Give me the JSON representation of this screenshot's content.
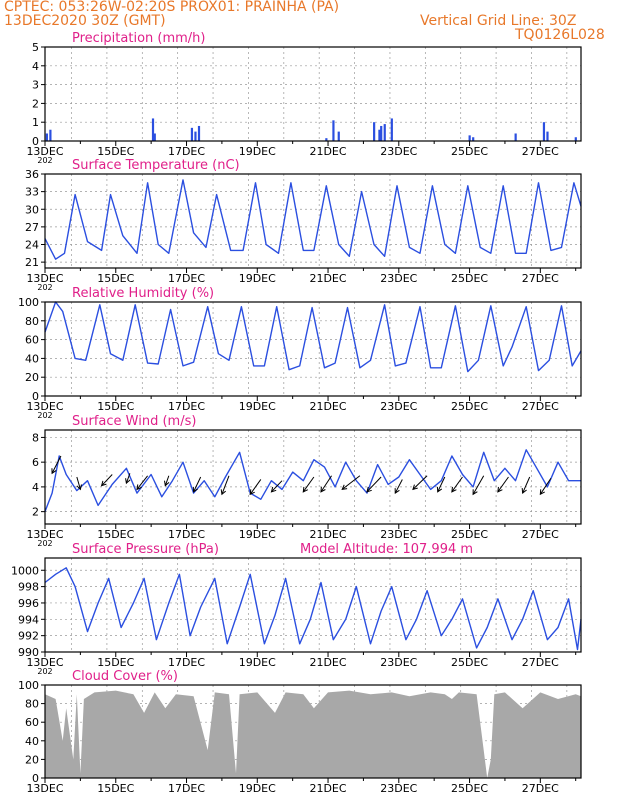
{
  "header": {
    "line1": "CPTEC:  053:26W-02:20S  PROX01: PRAINHA (PA)",
    "line2_left": "13DEC2020 30Z (GMT)",
    "line2_right": "Vertical Grid Line: 30Z",
    "line3_right": "TQ0126L028"
  },
  "colors": {
    "header": "#e8782a",
    "title": "#e0208a",
    "line": "#2b4fe0",
    "wind": "#000000",
    "cloud": "#a8a8a8",
    "grid": "#9a9a9a"
  },
  "x_tick_labels": [
    "13DEC",
    "15DEC",
    "17DEC",
    "19DEC",
    "21DEC",
    "23DEC",
    "25DEC",
    "27DEC"
  ],
  "year_fragment": "202",
  "chart_data": [
    {
      "id": "precip",
      "type": "bar",
      "title": "Precipitation (mm/h)",
      "ylim": [
        0,
        5
      ],
      "yticks": [
        0,
        1,
        2,
        3,
        4,
        5
      ],
      "bars": [
        [
          0.05,
          0.4
        ],
        [
          0.15,
          0.6
        ],
        [
          3.05,
          1.2
        ],
        [
          3.1,
          0.4
        ],
        [
          4.15,
          0.7
        ],
        [
          4.25,
          0.5
        ],
        [
          4.35,
          0.8
        ],
        [
          7.95,
          0.15
        ],
        [
          8.15,
          1.1
        ],
        [
          8.3,
          0.5
        ],
        [
          9.3,
          1.0
        ],
        [
          9.45,
          0.6
        ],
        [
          9.5,
          0.8
        ],
        [
          9.6,
          0.9
        ],
        [
          9.8,
          1.2
        ],
        [
          12.0,
          0.3
        ],
        [
          12.1,
          0.2
        ],
        [
          13.3,
          0.4
        ],
        [
          14.1,
          1.0
        ],
        [
          14.2,
          0.5
        ],
        [
          15.0,
          0.2
        ]
      ]
    },
    {
      "id": "temp",
      "type": "line",
      "title": "Surface Temperature (nC)",
      "ylim": [
        20,
        36
      ],
      "yticks": [
        21,
        24,
        27,
        30,
        33,
        36
      ],
      "points": [
        [
          0,
          25
        ],
        [
          0.3,
          21.5
        ],
        [
          0.55,
          22.5
        ],
        [
          0.85,
          32.5
        ],
        [
          1.2,
          24.5
        ],
        [
          1.6,
          23
        ],
        [
          1.85,
          32.5
        ],
        [
          2.2,
          25.5
        ],
        [
          2.6,
          22.5
        ],
        [
          2.9,
          34.5
        ],
        [
          3.2,
          24
        ],
        [
          3.5,
          22.5
        ],
        [
          3.9,
          35
        ],
        [
          4.2,
          26
        ],
        [
          4.55,
          23.5
        ],
        [
          4.85,
          32.5
        ],
        [
          5.25,
          23
        ],
        [
          5.6,
          23
        ],
        [
          5.95,
          34.5
        ],
        [
          6.25,
          24
        ],
        [
          6.6,
          22.5
        ],
        [
          6.95,
          34.5
        ],
        [
          7.3,
          23
        ],
        [
          7.6,
          23
        ],
        [
          7.95,
          34
        ],
        [
          8.3,
          24
        ],
        [
          8.6,
          22
        ],
        [
          8.95,
          33
        ],
        [
          9.3,
          24
        ],
        [
          9.6,
          22
        ],
        [
          9.95,
          34
        ],
        [
          10.3,
          23.5
        ],
        [
          10.6,
          22.5
        ],
        [
          10.95,
          34
        ],
        [
          11.3,
          24
        ],
        [
          11.6,
          22.5
        ],
        [
          11.95,
          34
        ],
        [
          12.3,
          23.5
        ],
        [
          12.6,
          22.5
        ],
        [
          12.95,
          34
        ],
        [
          13.3,
          22.5
        ],
        [
          13.6,
          22.5
        ],
        [
          13.95,
          34.5
        ],
        [
          14.3,
          23
        ],
        [
          14.6,
          23.5
        ],
        [
          14.95,
          34.5
        ],
        [
          15.15,
          30.5
        ]
      ]
    },
    {
      "id": "rh",
      "type": "line",
      "title": "Relative Humidity (%)",
      "ylim": [
        0,
        100
      ],
      "yticks": [
        0,
        20,
        40,
        60,
        80,
        100
      ],
      "points": [
        [
          0,
          68
        ],
        [
          0.3,
          100
        ],
        [
          0.5,
          90
        ],
        [
          0.85,
          40
        ],
        [
          1.15,
          38
        ],
        [
          1.55,
          97
        ],
        [
          1.85,
          45
        ],
        [
          2.2,
          38
        ],
        [
          2.55,
          97
        ],
        [
          2.9,
          35
        ],
        [
          3.2,
          34
        ],
        [
          3.55,
          92
        ],
        [
          3.9,
          32
        ],
        [
          4.2,
          36
        ],
        [
          4.6,
          95
        ],
        [
          4.9,
          45
        ],
        [
          5.2,
          38
        ],
        [
          5.55,
          95
        ],
        [
          5.9,
          32
        ],
        [
          6.2,
          32
        ],
        [
          6.55,
          95
        ],
        [
          6.9,
          28
        ],
        [
          7.2,
          32
        ],
        [
          7.55,
          94
        ],
        [
          7.9,
          30
        ],
        [
          8.2,
          35
        ],
        [
          8.55,
          94
        ],
        [
          8.9,
          30
        ],
        [
          9.2,
          38
        ],
        [
          9.6,
          97
        ],
        [
          9.9,
          32
        ],
        [
          10.2,
          35
        ],
        [
          10.6,
          95
        ],
        [
          10.9,
          30
        ],
        [
          11.2,
          30
        ],
        [
          11.6,
          96
        ],
        [
          11.95,
          26
        ],
        [
          12.25,
          38
        ],
        [
          12.6,
          96
        ],
        [
          12.95,
          32
        ],
        [
          13.2,
          52
        ],
        [
          13.6,
          95
        ],
        [
          13.95,
          27
        ],
        [
          14.25,
          38
        ],
        [
          14.6,
          96
        ],
        [
          14.9,
          32
        ],
        [
          15.15,
          48
        ]
      ]
    },
    {
      "id": "wind",
      "type": "line",
      "title": "Surface Wind (m/s)",
      "ylim": [
        1,
        8.6
      ],
      "yticks": [
        2,
        4,
        6,
        8
      ],
      "points": [
        [
          0,
          2
        ],
        [
          0.2,
          3.5
        ],
        [
          0.4,
          6.5
        ],
        [
          0.6,
          5
        ],
        [
          0.9,
          3.7
        ],
        [
          1.2,
          4.5
        ],
        [
          1.5,
          2.5
        ],
        [
          1.9,
          4.2
        ],
        [
          2.3,
          5.5
        ],
        [
          2.6,
          3.5
        ],
        [
          3,
          5
        ],
        [
          3.3,
          3.2
        ],
        [
          3.6,
          4.5
        ],
        [
          3.9,
          6
        ],
        [
          4.2,
          3.5
        ],
        [
          4.5,
          4.5
        ],
        [
          4.8,
          3.2
        ],
        [
          5.1,
          4.8
        ],
        [
          5.5,
          6.8
        ],
        [
          5.8,
          3.5
        ],
        [
          6.1,
          3
        ],
        [
          6.4,
          4.5
        ],
        [
          6.7,
          3.8
        ],
        [
          7,
          5.2
        ],
        [
          7.3,
          4.5
        ],
        [
          7.6,
          6.2
        ],
        [
          7.9,
          5.6
        ],
        [
          8.2,
          4
        ],
        [
          8.5,
          6
        ],
        [
          8.8,
          4.5
        ],
        [
          9.1,
          3.5
        ],
        [
          9.4,
          5.8
        ],
        [
          9.7,
          4.2
        ],
        [
          10,
          4.8
        ],
        [
          10.3,
          6.2
        ],
        [
          10.6,
          5
        ],
        [
          10.9,
          3.8
        ],
        [
          11.2,
          4.5
        ],
        [
          11.5,
          6.5
        ],
        [
          11.8,
          5
        ],
        [
          12.1,
          4
        ],
        [
          12.4,
          6.8
        ],
        [
          12.7,
          4.5
        ],
        [
          13,
          5.5
        ],
        [
          13.3,
          4.5
        ],
        [
          13.6,
          7
        ],
        [
          13.9,
          5.5
        ],
        [
          14.2,
          4
        ],
        [
          14.5,
          6
        ],
        [
          14.8,
          4.5
        ],
        [
          15.15,
          4.5
        ]
      ],
      "arrows": [
        [
          0.45,
          6.5,
          0.2,
          5.1
        ],
        [
          0.9,
          4.8,
          1.0,
          3.8
        ],
        [
          1.9,
          5,
          1.6,
          4.1
        ],
        [
          2.4,
          5.1,
          2.3,
          4.3
        ],
        [
          2.9,
          4.9,
          2.6,
          3.8
        ],
        [
          3.5,
          4.9,
          3.4,
          4.1
        ],
        [
          4.4,
          4.8,
          4.2,
          3.6
        ],
        [
          5.2,
          4.9,
          5.0,
          3.4
        ],
        [
          6.1,
          4.6,
          5.8,
          3.4
        ],
        [
          6.7,
          4.5,
          6.4,
          3.6
        ],
        [
          7.6,
          4.8,
          7.3,
          3.6
        ],
        [
          8.1,
          4.9,
          7.8,
          3.6
        ],
        [
          8.9,
          4.9,
          8.4,
          3.8
        ],
        [
          9.5,
          4.8,
          9.1,
          3.6
        ],
        [
          10.1,
          4.6,
          9.9,
          3.5
        ],
        [
          10.8,
          4.9,
          10.4,
          3.8
        ],
        [
          11.3,
          4.8,
          11.1,
          3.6
        ],
        [
          11.8,
          4.8,
          11.5,
          3.6
        ],
        [
          12.4,
          4.9,
          12.1,
          3.4
        ],
        [
          13.1,
          4.8,
          12.8,
          3.6
        ],
        [
          13.7,
          4.8,
          13.5,
          3.5
        ],
        [
          14.3,
          4.7,
          14.0,
          3.4
        ]
      ]
    },
    {
      "id": "press",
      "type": "line",
      "title": "Surface Pressure (hPa)",
      "subtitle": "Model Altitude: 107.994 m",
      "ylim": [
        990,
        1001.5
      ],
      "yticks": [
        990,
        992,
        994,
        996,
        998,
        1000
      ],
      "points": [
        [
          0,
          998.5
        ],
        [
          0.3,
          999.5
        ],
        [
          0.6,
          1000.3
        ],
        [
          0.85,
          998
        ],
        [
          1.2,
          992.5
        ],
        [
          1.5,
          996
        ],
        [
          1.8,
          999
        ],
        [
          2.15,
          993
        ],
        [
          2.5,
          996
        ],
        [
          2.8,
          999
        ],
        [
          3.15,
          991.5
        ],
        [
          3.5,
          996
        ],
        [
          3.8,
          999.5
        ],
        [
          4.1,
          992
        ],
        [
          4.4,
          995.5
        ],
        [
          4.8,
          999
        ],
        [
          5.15,
          991
        ],
        [
          5.5,
          995.5
        ],
        [
          5.8,
          999.5
        ],
        [
          6.2,
          991
        ],
        [
          6.5,
          994.5
        ],
        [
          6.8,
          999
        ],
        [
          7.2,
          991
        ],
        [
          7.5,
          994
        ],
        [
          7.8,
          998.5
        ],
        [
          8.15,
          991.5
        ],
        [
          8.5,
          994
        ],
        [
          8.8,
          998
        ],
        [
          9.2,
          991
        ],
        [
          9.5,
          995
        ],
        [
          9.8,
          998
        ],
        [
          10.2,
          991.5
        ],
        [
          10.5,
          994
        ],
        [
          10.8,
          997.5
        ],
        [
          11.2,
          992
        ],
        [
          11.5,
          994
        ],
        [
          11.8,
          996.5
        ],
        [
          12.2,
          990.5
        ],
        [
          12.5,
          993
        ],
        [
          12.8,
          996.5
        ],
        [
          13.2,
          991.5
        ],
        [
          13.5,
          994
        ],
        [
          13.8,
          997.5
        ],
        [
          14.2,
          991.5
        ],
        [
          14.5,
          993
        ],
        [
          14.8,
          996.5
        ],
        [
          15.05,
          990.3
        ],
        [
          15.15,
          994
        ]
      ]
    },
    {
      "id": "cloud",
      "type": "area",
      "title": "Cloud Cover (%)",
      "ylim": [
        0,
        100
      ],
      "yticks": [
        0,
        20,
        40,
        60,
        80,
        100
      ],
      "points": [
        [
          0,
          90
        ],
        [
          0.3,
          85
        ],
        [
          0.5,
          40
        ],
        [
          0.6,
          75
        ],
        [
          0.8,
          20
        ],
        [
          0.9,
          90
        ],
        [
          1.0,
          5
        ],
        [
          1.1,
          85
        ],
        [
          1.4,
          92
        ],
        [
          2.0,
          94
        ],
        [
          2.5,
          90
        ],
        [
          2.8,
          70
        ],
        [
          3.1,
          92
        ],
        [
          3.4,
          75
        ],
        [
          3.7,
          90
        ],
        [
          4.2,
          88
        ],
        [
          4.6,
          30
        ],
        [
          4.8,
          92
        ],
        [
          5.2,
          90
        ],
        [
          5.4,
          5
        ],
        [
          5.5,
          90
        ],
        [
          6.0,
          92
        ],
        [
          6.5,
          70
        ],
        [
          6.8,
          92
        ],
        [
          7.3,
          90
        ],
        [
          7.6,
          75
        ],
        [
          8.0,
          92
        ],
        [
          8.6,
          94
        ],
        [
          9.2,
          90
        ],
        [
          9.8,
          92
        ],
        [
          10.3,
          88
        ],
        [
          10.9,
          92
        ],
        [
          11.3,
          90
        ],
        [
          11.5,
          85
        ],
        [
          11.7,
          92
        ],
        [
          12.2,
          90
        ],
        [
          12.4,
          30
        ],
        [
          12.5,
          0
        ],
        [
          12.6,
          20
        ],
        [
          12.7,
          90
        ],
        [
          13.0,
          92
        ],
        [
          13.5,
          75
        ],
        [
          14.0,
          92
        ],
        [
          14.5,
          85
        ],
        [
          15.0,
          90
        ],
        [
          15.15,
          88
        ]
      ]
    }
  ]
}
